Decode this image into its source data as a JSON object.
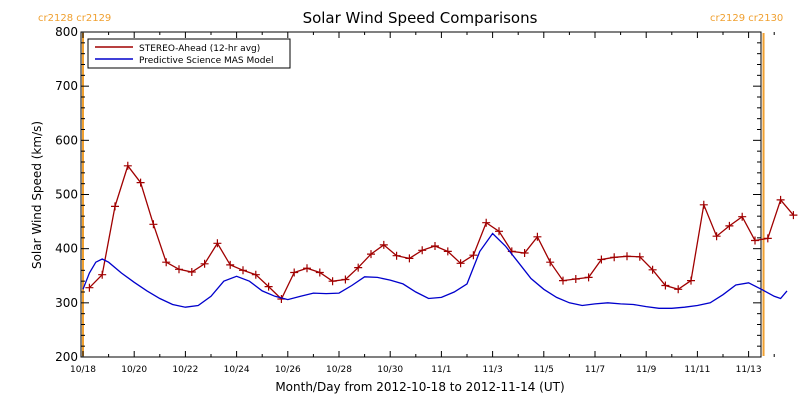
{
  "chart_data": {
    "type": "line",
    "title": "Solar Wind Speed Comparisons",
    "xlabel": "Month/Day from 2012-10-18 to 2012-11-14 (UT)",
    "ylabel": "Solar Wind Speed (km/s)",
    "xlim": [
      "2012-10-18",
      "2012-11-14"
    ],
    "ylim": [
      200,
      800
    ],
    "yticks": [
      200,
      300,
      400,
      500,
      600,
      700,
      800
    ],
    "xticks": [
      {
        "label": "10/18",
        "date": "2012-10-18"
      },
      {
        "label": "10/20",
        "date": "2012-10-20"
      },
      {
        "label": "10/22",
        "date": "2012-10-22"
      },
      {
        "label": "10/24",
        "date": "2012-10-24"
      },
      {
        "label": "10/26",
        "date": "2012-10-26"
      },
      {
        "label": "10/28",
        "date": "2012-10-28"
      },
      {
        "label": "10/30",
        "date": "2012-10-30"
      },
      {
        "label": "11/1",
        "date": "2012-11-01"
      },
      {
        "label": "11/3",
        "date": "2012-11-03"
      },
      {
        "label": "11/5",
        "date": "2012-11-05"
      },
      {
        "label": "11/7",
        "date": "2012-11-07"
      },
      {
        "label": "11/9",
        "date": "2012-11-09"
      },
      {
        "label": "11/11",
        "date": "2012-11-11"
      },
      {
        "label": "11/13",
        "date": "2012-11-13"
      }
    ],
    "legend": "top-left",
    "carrington": {
      "left": "cr2128 cr2129",
      "right": "cr2129 cr2130",
      "left_date": "2012-10-18",
      "right_date": "2012-11-13T14:00",
      "color": "#f0a030"
    },
    "series": [
      {
        "name": "STEREO-Ahead (12-hr avg)",
        "color": "#a00000",
        "markers": "plus",
        "points": [
          [
            "2012-10-18T06:00",
            328
          ],
          [
            "2012-10-18T18:00",
            352
          ],
          [
            "2012-10-19T06:00",
            478
          ],
          [
            "2012-10-19T18:00",
            553
          ],
          [
            "2012-10-20T06:00",
            522
          ],
          [
            "2012-10-20T18:00",
            445
          ],
          [
            "2012-10-21T06:00",
            375
          ],
          [
            "2012-10-21T18:00",
            362
          ],
          [
            "2012-10-22T06:00",
            357
          ],
          [
            "2012-10-22T18:00",
            372
          ],
          [
            "2012-10-23T06:00",
            410
          ],
          [
            "2012-10-23T18:00",
            370
          ],
          [
            "2012-10-24T06:00",
            360
          ],
          [
            "2012-10-24T18:00",
            352
          ],
          [
            "2012-10-25T06:00",
            330
          ],
          [
            "2012-10-25T18:00",
            307
          ],
          [
            "2012-10-26T06:00",
            356
          ],
          [
            "2012-10-26T18:00",
            364
          ],
          [
            "2012-10-27T06:00",
            356
          ],
          [
            "2012-10-27T18:00",
            340
          ],
          [
            "2012-10-28T06:00",
            343
          ],
          [
            "2012-10-28T18:00",
            365
          ],
          [
            "2012-10-29T06:00",
            390
          ],
          [
            "2012-10-29T18:00",
            407
          ],
          [
            "2012-10-30T06:00",
            387
          ],
          [
            "2012-10-30T18:00",
            382
          ],
          [
            "2012-10-31T06:00",
            397
          ],
          [
            "2012-10-31T18:00",
            405
          ],
          [
            "2012-11-01T06:00",
            395
          ],
          [
            "2012-11-01T18:00",
            373
          ],
          [
            "2012-11-02T06:00",
            388
          ],
          [
            "2012-11-02T18:00",
            448
          ],
          [
            "2012-11-03T06:00",
            432
          ],
          [
            "2012-11-03T18:00",
            395
          ],
          [
            "2012-11-04T06:00",
            392
          ],
          [
            "2012-11-04T18:00",
            422
          ],
          [
            "2012-11-05T06:00",
            375
          ],
          [
            "2012-11-05T18:00",
            341
          ],
          [
            "2012-11-06T06:00",
            344
          ],
          [
            "2012-11-06T18:00",
            347
          ],
          [
            "2012-11-07T06:00",
            380
          ],
          [
            "2012-11-07T18:00",
            384
          ],
          [
            "2012-11-08T06:00",
            386
          ],
          [
            "2012-11-08T18:00",
            385
          ],
          [
            "2012-11-09T06:00",
            361
          ],
          [
            "2012-11-09T18:00",
            332
          ],
          [
            "2012-11-10T06:00",
            325
          ],
          [
            "2012-11-10T18:00",
            341
          ],
          [
            "2012-11-11T06:00",
            481
          ],
          [
            "2012-11-11T18:00",
            423
          ],
          [
            "2012-11-12T06:00",
            442
          ],
          [
            "2012-11-12T18:00",
            459
          ],
          [
            "2012-11-13T06:00",
            415
          ],
          [
            "2012-11-13T18:00",
            419
          ],
          [
            "2012-11-14T06:00",
            490
          ],
          [
            "2012-11-14T18:00",
            462
          ]
        ]
      },
      {
        "name": "Predictive Science MAS Model",
        "color": "#0000cc",
        "markers": "none",
        "points": [
          [
            "2012-10-18T00:00",
            325
          ],
          [
            "2012-10-18T06:00",
            355
          ],
          [
            "2012-10-18T12:00",
            375
          ],
          [
            "2012-10-18T18:00",
            381
          ],
          [
            "2012-10-19T00:00",
            375
          ],
          [
            "2012-10-19T12:00",
            355
          ],
          [
            "2012-10-20T00:00",
            338
          ],
          [
            "2012-10-20T12:00",
            322
          ],
          [
            "2012-10-21T00:00",
            308
          ],
          [
            "2012-10-21T12:00",
            297
          ],
          [
            "2012-10-22T00:00",
            292
          ],
          [
            "2012-10-22T12:00",
            295
          ],
          [
            "2012-10-23T00:00",
            312
          ],
          [
            "2012-10-23T12:00",
            340
          ],
          [
            "2012-10-24T00:00",
            349
          ],
          [
            "2012-10-24T12:00",
            340
          ],
          [
            "2012-10-25T00:00",
            322
          ],
          [
            "2012-10-25T12:00",
            312
          ],
          [
            "2012-10-26T00:00",
            306
          ],
          [
            "2012-10-26T12:00",
            312
          ],
          [
            "2012-10-27T00:00",
            318
          ],
          [
            "2012-10-27T12:00",
            317
          ],
          [
            "2012-10-28T00:00",
            318
          ],
          [
            "2012-10-28T12:00",
            332
          ],
          [
            "2012-10-29T00:00",
            348
          ],
          [
            "2012-10-29T12:00",
            347
          ],
          [
            "2012-10-30T00:00",
            342
          ],
          [
            "2012-10-30T12:00",
            335
          ],
          [
            "2012-10-31T00:00",
            320
          ],
          [
            "2012-10-31T12:00",
            308
          ],
          [
            "2012-11-01T00:00",
            310
          ],
          [
            "2012-11-01T12:00",
            320
          ],
          [
            "2012-11-02T00:00",
            335
          ],
          [
            "2012-11-02T12:00",
            395
          ],
          [
            "2012-11-03T00:00",
            428
          ],
          [
            "2012-11-03T12:00",
            405
          ],
          [
            "2012-11-04T00:00",
            375
          ],
          [
            "2012-11-04T12:00",
            345
          ],
          [
            "2012-11-05T00:00",
            325
          ],
          [
            "2012-11-05T12:00",
            310
          ],
          [
            "2012-11-06T00:00",
            300
          ],
          [
            "2012-11-06T12:00",
            295
          ],
          [
            "2012-11-07T00:00",
            298
          ],
          [
            "2012-11-07T12:00",
            300
          ],
          [
            "2012-11-08T00:00",
            298
          ],
          [
            "2012-11-08T12:00",
            297
          ],
          [
            "2012-11-09T00:00",
            293
          ],
          [
            "2012-11-09T12:00",
            290
          ],
          [
            "2012-11-10T00:00",
            290
          ],
          [
            "2012-11-10T12:00",
            292
          ],
          [
            "2012-11-11T00:00",
            295
          ],
          [
            "2012-11-11T12:00",
            300
          ],
          [
            "2012-11-12T00:00",
            315
          ],
          [
            "2012-11-12T12:00",
            333
          ],
          [
            "2012-11-13T00:00",
            337
          ],
          [
            "2012-11-13T12:00",
            325
          ],
          [
            "2012-11-14T00:00",
            312
          ],
          [
            "2012-11-14T06:00",
            308
          ],
          [
            "2012-11-14T12:00",
            322
          ]
        ]
      }
    ]
  }
}
